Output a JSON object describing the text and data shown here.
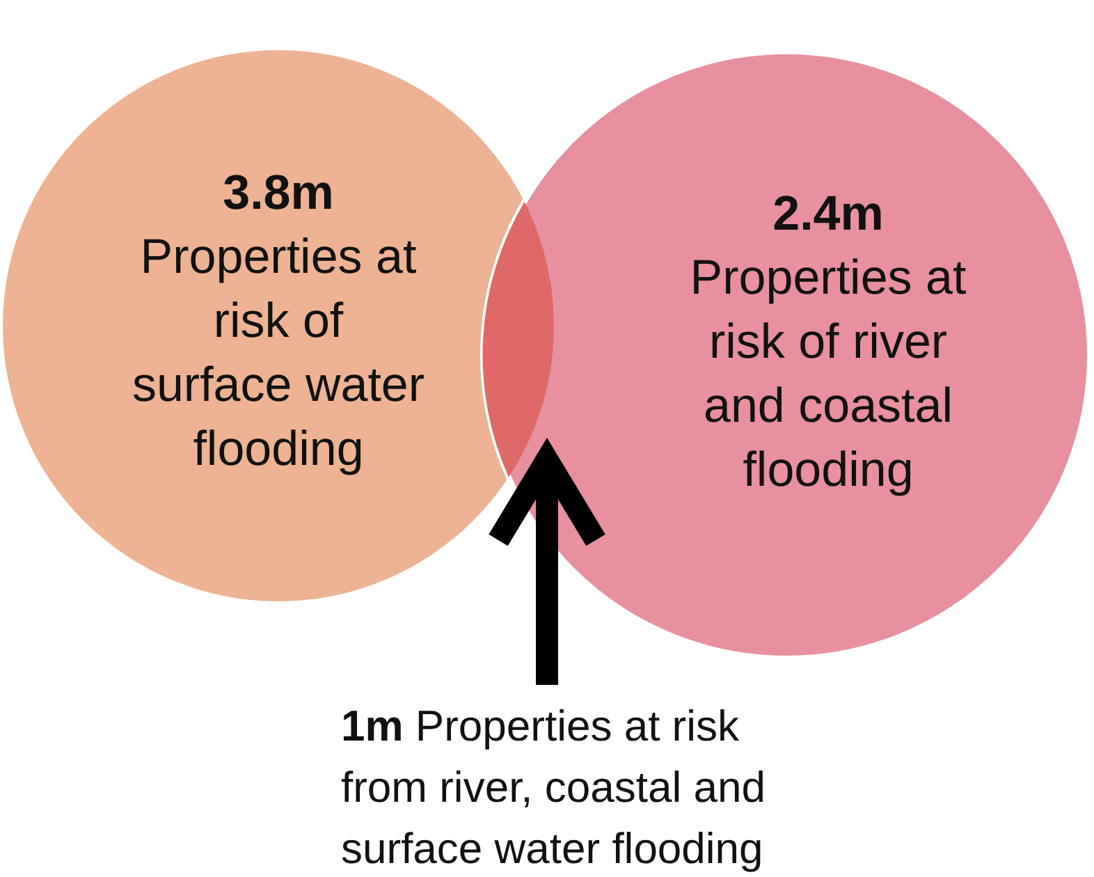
{
  "chart_data": {
    "type": "other",
    "categories": [
      "Properties at risk of surface water flooding",
      "Properties at risk of river and coastal flooding",
      "Properties at risk from river, coastal and surface water flooding"
    ],
    "values": [
      3.8,
      2.4,
      1
    ],
    "value_labels": [
      "3.8m",
      "2.4m",
      "1m"
    ],
    "colors": [
      "#edb394",
      "#e8909f",
      "#e06868"
    ]
  }
}
